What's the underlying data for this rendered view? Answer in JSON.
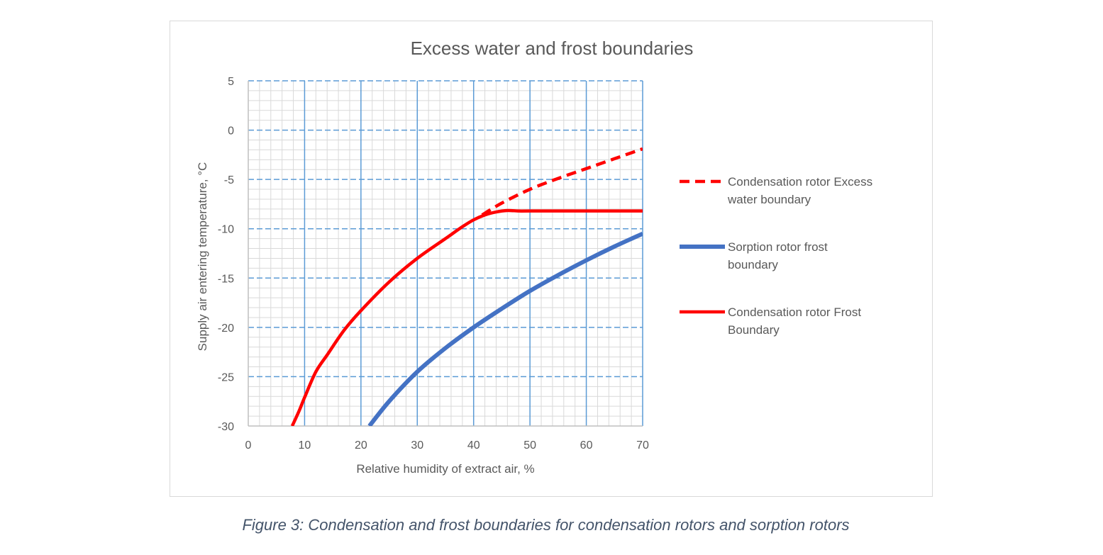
{
  "figure": {
    "caption": "Figure 3: Condensation and frost boundaries for condensation rotors and sorption rotors"
  },
  "chart_data": {
    "type": "line",
    "title": "Excess water and frost boundaries",
    "xlabel": "Relative humidity of extract air, %",
    "ylabel": "Supply air entering temperature, °C",
    "xlim": [
      0,
      70
    ],
    "ylim": [
      -30,
      5
    ],
    "xticks": [
      0,
      10,
      20,
      30,
      40,
      50,
      60,
      70
    ],
    "yticks": [
      5,
      0,
      -5,
      -10,
      -15,
      -20,
      -25,
      -30
    ],
    "grid": "major and minor",
    "legend_position": "right",
    "series": [
      {
        "name": "Condensation rotor Excess water boundary",
        "color": "#ff0000",
        "style": "dashed",
        "x": [
          41.5,
          45,
          50,
          55,
          60,
          65,
          70
        ],
        "y": [
          -8.6,
          -7.4,
          -6.0,
          -4.9,
          -3.9,
          -2.9,
          -1.9
        ]
      },
      {
        "name": "Sorption rotor frost boundary",
        "color": "#4472c4",
        "style": "solid",
        "x": [
          21.5,
          25,
          30,
          35,
          40,
          45,
          50,
          55,
          60,
          65,
          70
        ],
        "y": [
          -30,
          -27.5,
          -24.5,
          -22.1,
          -20.0,
          -18.1,
          -16.3,
          -14.7,
          -13.2,
          -11.8,
          -10.5
        ]
      },
      {
        "name": "Condensation rotor Frost Boundary",
        "color": "#ff0000",
        "style": "solid",
        "x": [
          7.8,
          9,
          10,
          12,
          14,
          17,
          20,
          25,
          30,
          35,
          38,
          40,
          42,
          44,
          46,
          48,
          50,
          60,
          70
        ],
        "y": [
          -30,
          -28.5,
          -27.1,
          -24.5,
          -22.8,
          -20.3,
          -18.3,
          -15.4,
          -13.0,
          -11.0,
          -9.8,
          -9.1,
          -8.6,
          -8.3,
          -8.15,
          -8.2,
          -8.2,
          -8.2,
          -8.2
        ]
      }
    ]
  }
}
